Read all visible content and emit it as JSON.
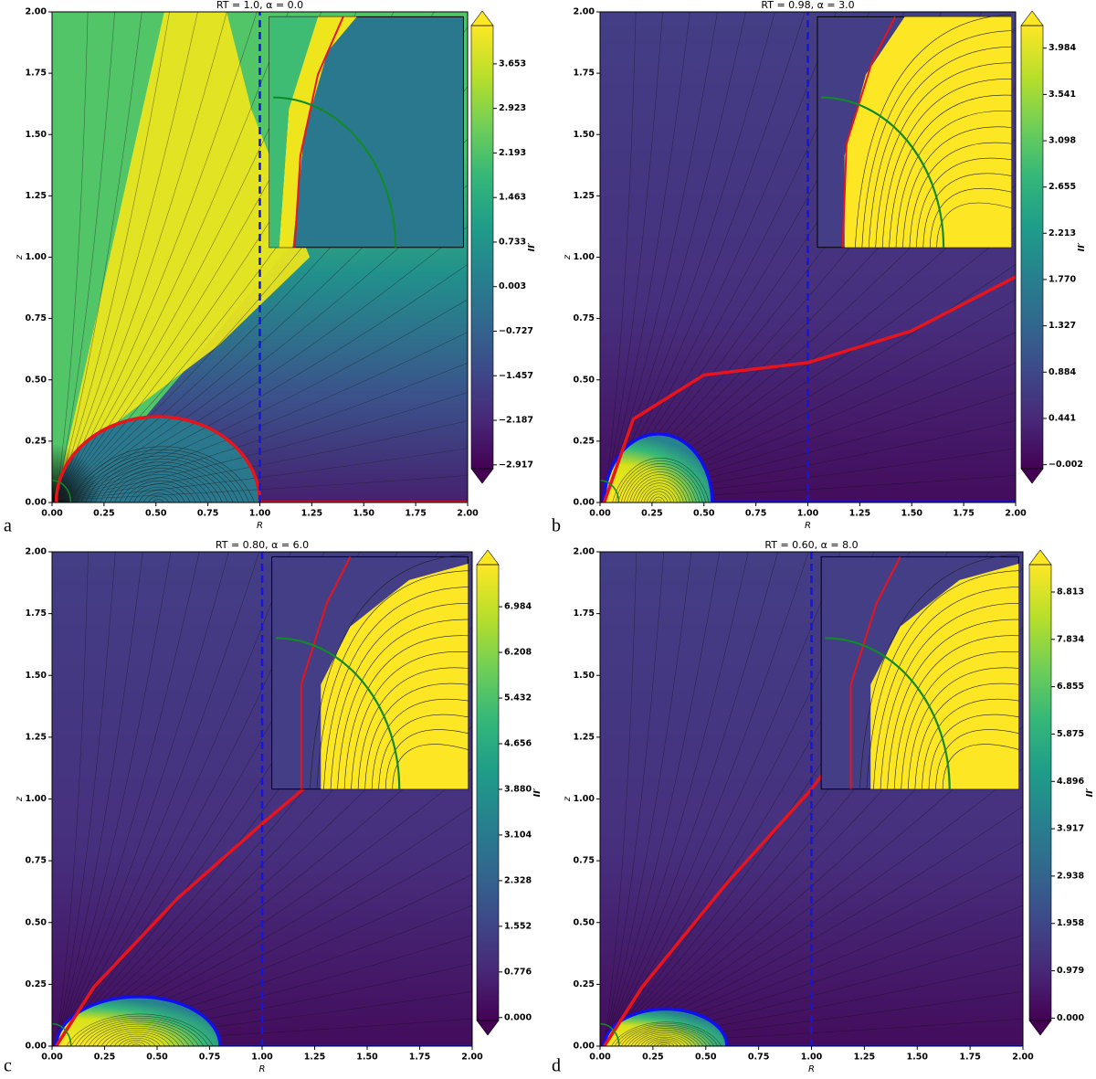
{
  "chart_data": [
    {
      "type": "heatmap",
      "title": "RT = 1.0, α = 0.0",
      "xlabel": "R",
      "ylabel": "z",
      "panel_label": "a",
      "colorbar_label": "II′",
      "xlim": [
        0,
        2
      ],
      "ylim": [
        0,
        2
      ],
      "xticks": [
        {
          "value": 0,
          "label": "0.00"
        },
        0.25,
        {
          "value": 0.5,
          "label": "0.50"
        },
        0.75,
        {
          "value": 1,
          "label": "1.00"
        },
        1.25,
        {
          "value": 1.5,
          "label": "1.50"
        },
        1.75,
        {
          "value": 2,
          "label": "2.00"
        }
      ],
      "yticks": [
        {
          "value": 0,
          "label": "0.00"
        },
        0.25,
        {
          "value": 0.5,
          "label": "0.50"
        },
        0.75,
        {
          "value": 1,
          "label": "1.00"
        },
        1.25,
        {
          "value": 1.5,
          "label": "1.50"
        },
        1.75,
        {
          "value": 2,
          "label": "2.00"
        }
      ],
      "clim": [
        -2.98,
        4.28
      ],
      "cticks": [
        {
          "value": -2.917,
          "label": "−2.917"
        },
        {
          "value": -2.187,
          "label": "−2.187"
        },
        {
          "value": -1.457,
          "label": "−1.457"
        },
        {
          "value": -0.727,
          "label": "−0.727"
        },
        0.003,
        0.733,
        1.463,
        2.193,
        2.923,
        3.653
      ]
    },
    {
      "type": "heatmap",
      "title": "RT = 0.98, α = 3.0",
      "xlabel": "R",
      "ylabel": "z",
      "panel_label": "b",
      "colorbar_label": "II′",
      "xlim": [
        0,
        2
      ],
      "ylim": [
        0,
        2
      ],
      "xticks": [
        {
          "value": 0,
          "label": "0.00"
        },
        0.25,
        {
          "value": 0.5,
          "label": "0.50"
        },
        0.75,
        {
          "value": 1,
          "label": "1.00"
        },
        1.25,
        {
          "value": 1.5,
          "label": "1.50"
        },
        1.75,
        {
          "value": 2,
          "label": "2.00"
        }
      ],
      "yticks": [
        {
          "value": 0,
          "label": "0.00"
        },
        0.25,
        {
          "value": 0.5,
          "label": "0.50"
        },
        0.75,
        {
          "value": 1,
          "label": "1.00"
        },
        1.25,
        {
          "value": 1.5,
          "label": "1.50"
        },
        1.75,
        {
          "value": 2,
          "label": "2.00"
        }
      ],
      "clim": [
        -0.04,
        4.2
      ],
      "cticks": [
        {
          "value": -0.002,
          "label": "−0.002"
        },
        0.441,
        0.884,
        1.327,
        {
          "value": 1.77,
          "label": "1.770"
        },
        2.213,
        2.655,
        3.098,
        3.541,
        3.984
      ]
    },
    {
      "type": "heatmap",
      "title": "RT = 0.80, α = 6.0",
      "xlabel": "R",
      "ylabel": "z",
      "panel_label": "c",
      "colorbar_label": "II′",
      "xlim": [
        0,
        2
      ],
      "ylim": [
        0,
        2
      ],
      "xticks": [
        {
          "value": 0,
          "label": "0.00"
        },
        0.25,
        {
          "value": 0.5,
          "label": "0.50"
        },
        0.75,
        {
          "value": 1,
          "label": "1.00"
        },
        1.25,
        {
          "value": 1.5,
          "label": "1.50"
        },
        1.75,
        {
          "value": 2,
          "label": "2.00"
        }
      ],
      "yticks": [
        {
          "value": 0,
          "label": "0.00"
        },
        0.25,
        {
          "value": 0.5,
          "label": "0.50"
        },
        0.75,
        {
          "value": 1,
          "label": "1.00"
        },
        1.25,
        {
          "value": 1.5,
          "label": "1.50"
        },
        1.75,
        {
          "value": 2,
          "label": "2.00"
        }
      ],
      "clim": [
        -0.05,
        7.7
      ],
      "cticks": [
        {
          "value": 0,
          "label": "0.000"
        },
        0.776,
        1.552,
        2.328,
        3.104,
        {
          "value": 3.88,
          "label": "3.880"
        },
        4.656,
        5.432,
        6.208,
        6.984
      ]
    },
    {
      "type": "heatmap",
      "title": "RT = 0.60, α = 8.0",
      "xlabel": "R",
      "ylabel": "z",
      "panel_label": "d",
      "colorbar_label": "II′",
      "xlim": [
        0,
        2
      ],
      "ylim": [
        0,
        2
      ],
      "xticks": [
        {
          "value": 0,
          "label": "0.00"
        },
        0.25,
        {
          "value": 0.5,
          "label": "0.50"
        },
        0.75,
        {
          "value": 1,
          "label": "1.00"
        },
        1.25,
        {
          "value": 1.5,
          "label": "1.50"
        },
        1.75,
        {
          "value": 2,
          "label": "2.00"
        }
      ],
      "yticks": [
        {
          "value": 0,
          "label": "0.00"
        },
        0.25,
        {
          "value": 0.5,
          "label": "0.50"
        },
        0.75,
        {
          "value": 1,
          "label": "1.00"
        },
        1.25,
        {
          "value": 1.5,
          "label": "1.50"
        },
        1.75,
        {
          "value": 2,
          "label": "2.00"
        }
      ],
      "clim": [
        -0.05,
        9.38
      ],
      "cticks": [
        {
          "value": 0,
          "label": "0.000"
        },
        0.979,
        1.958,
        2.938,
        3.917,
        4.896,
        5.875,
        6.855,
        7.834,
        8.813
      ]
    }
  ]
}
